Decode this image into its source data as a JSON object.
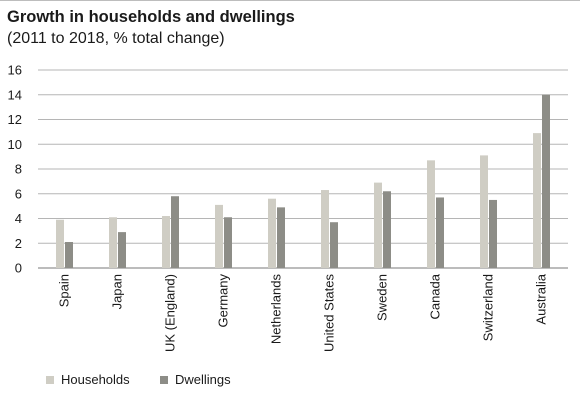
{
  "chart_data": {
    "type": "bar",
    "title": "Growth in households and dwellings",
    "subtitle": "(2011 to 2018, % total change)",
    "categories": [
      "Spain",
      "Japan",
      "UK (England)",
      "Germany",
      "Netherlands",
      "United States",
      "Sweden",
      "Canada",
      "Switzerland",
      "Australia"
    ],
    "series": [
      {
        "name": "Households",
        "color": "#cfcdc4",
        "values": [
          3.9,
          4.1,
          4.2,
          5.1,
          5.6,
          6.3,
          6.9,
          8.7,
          9.1,
          10.9
        ]
      },
      {
        "name": "Dwellings",
        "color": "#8d8d87",
        "values": [
          2.1,
          2.9,
          5.8,
          4.1,
          4.9,
          3.7,
          6.2,
          5.7,
          5.5,
          14.0
        ]
      }
    ],
    "ylim": [
      0,
      16
    ],
    "yticks": [
      "0",
      "2",
      "4",
      "6",
      "8",
      "10",
      "12",
      "14",
      "16"
    ],
    "grid": true,
    "legend_position": "bottom-left",
    "grid_color": "#b5b5b5",
    "axis_color": "#7a7a7a"
  }
}
